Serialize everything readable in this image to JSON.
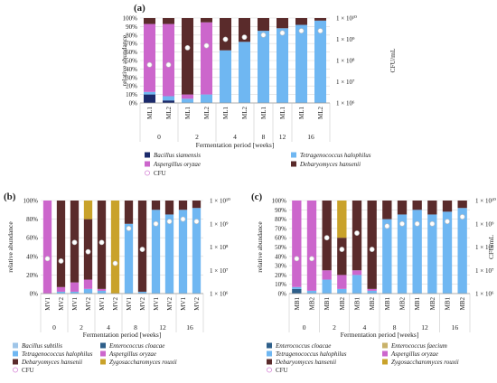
{
  "figure": {
    "colors": {
      "Bacillus siamensis": "#1b2a6b",
      "Bacillus subtilis": "#9fc5e8",
      "Enterococcus cloacae": "#2e5f8a",
      "Enterococcus faecium": "#c9b26a",
      "Tetragenococcus halophilus": "#6fb7f2",
      "Aspergillus oryzae": "#cc66cc",
      "Debaryomyces hansenii": "#5a2b2b",
      "Zygosaccharomyces rouxii": "#c9a22a",
      "CFU": "#ffffff"
    }
  },
  "chart_data": [
    {
      "panel": "(a)",
      "type": "bar",
      "stacked": true,
      "ylabel": "relative abundance",
      "y2label": "CFU/mL",
      "xlabel": "Fermentation period [weeks]",
      "yticks": [
        "0%",
        "10%",
        "20%",
        "30%",
        "40%",
        "50%",
        "60%",
        "70%",
        "80%",
        "90%",
        "100%"
      ],
      "y2ticks": [
        "1 × 10⁶",
        "1 × 10⁷",
        "1 × 10⁸",
        "1 × 10⁹",
        "1 × 10¹⁰"
      ],
      "y2exp": [
        6,
        7,
        8,
        9,
        10
      ],
      "categories": [
        "ML1",
        "ML2",
        "ML1",
        "ML2",
        "ML1",
        "ML2",
        "ML1",
        "ML1",
        "ML1",
        "ML2"
      ],
      "groups": [
        "0",
        "2",
        "4",
        "8",
        "12",
        "16"
      ],
      "group_sizes": [
        2,
        2,
        2,
        1,
        1,
        2
      ],
      "series": [
        {
          "name": "Bacillus siamensis",
          "values": [
            10,
            3,
            0,
            0,
            0,
            0,
            0,
            0,
            0,
            0
          ]
        },
        {
          "name": "Tetragenococcus halophilus",
          "values": [
            3,
            5,
            5,
            10,
            62,
            72,
            85,
            88,
            92,
            97
          ]
        },
        {
          "name": "Aspergillus oryzae",
          "values": [
            80,
            85,
            5,
            85,
            0,
            0,
            0,
            0,
            0,
            0
          ]
        },
        {
          "name": "Debaryomyces hansenii",
          "values": [
            7,
            7,
            90,
            5,
            38,
            28,
            15,
            12,
            8,
            3
          ]
        }
      ],
      "cfu_log10": [
        7.8,
        7.8,
        8.6,
        8.7,
        9.0,
        9.1,
        9.2,
        9.3,
        9.4,
        9.4
      ],
      "legend": [
        "Bacillus siamensis",
        "Tetragenococcus halophilus",
        "Aspergillus oryzae",
        "Debaryomyces hansenii",
        "CFU"
      ]
    },
    {
      "panel": "(b)",
      "type": "bar",
      "stacked": true,
      "ylabel": "relative abundance",
      "xlabel": "Fermentation period [weeks]",
      "yticks": [
        "0%",
        "20%",
        "40%",
        "60%",
        "80%",
        "100%"
      ],
      "y2ticks": [
        "1 × 10⁶",
        "1 × 10⁷",
        "1 × 10⁸",
        "1 × 10⁹",
        "1 × 10¹⁰"
      ],
      "y2exp": [
        6,
        7,
        8,
        9,
        10
      ],
      "categories": [
        "MV1",
        "MV2",
        "MV1",
        "MV2",
        "MV1",
        "MV2",
        "MV1",
        "MV2",
        "MV1",
        "MV2",
        "MV1",
        "MV2"
      ],
      "groups": [
        "0",
        "2",
        "4",
        "8",
        "12",
        "16"
      ],
      "group_sizes": [
        2,
        2,
        2,
        2,
        2,
        2
      ],
      "series": [
        {
          "name": "Bacillus subtilis",
          "values": [
            0,
            0,
            0,
            0,
            0,
            0,
            0,
            0,
            0,
            0,
            0,
            0
          ]
        },
        {
          "name": "Tetragenococcus halophilus",
          "values": [
            0,
            2,
            2,
            5,
            3,
            0,
            75,
            2,
            90,
            85,
            90,
            92
          ]
        },
        {
          "name": "Enterococcus cloacae",
          "values": [
            0,
            0,
            0,
            0,
            0,
            0,
            0,
            0,
            0,
            0,
            0,
            0
          ]
        },
        {
          "name": "Aspergillus oryzae",
          "values": [
            100,
            5,
            10,
            10,
            2,
            0,
            0,
            0,
            0,
            0,
            0,
            0
          ]
        },
        {
          "name": "Debaryomyces hansenii",
          "values": [
            0,
            93,
            88,
            65,
            95,
            0,
            25,
            98,
            10,
            15,
            10,
            8
          ]
        },
        {
          "name": "Zygosaccharomyces rouxii",
          "values": [
            0,
            0,
            0,
            20,
            0,
            100,
            0,
            0,
            0,
            0,
            0,
            0
          ]
        }
      ],
      "cfu_log10": [
        7.5,
        7.4,
        8.2,
        7.8,
        8.2,
        7.3,
        8.8,
        7.9,
        9.0,
        9.1,
        9.2,
        9.1
      ],
      "legend": [
        "Bacillus subtilis",
        "Enterococcus cloacae",
        "Tetragenococcus halophilus",
        "Aspergillus oryzae",
        "Debaryomyces hansenii",
        "Zygosaccharomyces rouxii",
        "CFU"
      ]
    },
    {
      "panel": "(c)",
      "type": "bar",
      "stacked": true,
      "ylabel": "relative abundance",
      "y2label": "CFU/mL",
      "xlabel": "Fermentation period [weeks]",
      "yticks": [
        "0%",
        "10%",
        "20%",
        "30%",
        "40%",
        "50%",
        "60%",
        "70%",
        "80%",
        "90%",
        "100%"
      ],
      "y2ticks": [
        "1 × 10⁶",
        "1 × 10⁷",
        "1 × 10⁸",
        "1 × 10⁹",
        "1 × 10¹⁰"
      ],
      "y2exp": [
        6,
        7,
        8,
        9,
        10
      ],
      "categories": [
        "MB1",
        "MB2",
        "MB1",
        "MB2",
        "MB1",
        "MB2",
        "MB1",
        "MB2",
        "MB1",
        "MB2",
        "MB1",
        "MB2"
      ],
      "groups": [
        "0",
        "2",
        "4",
        "8",
        "12",
        "16"
      ],
      "group_sizes": [
        2,
        2,
        2,
        2,
        2,
        2
      ],
      "series": [
        {
          "name": "Enterococcus cloacae",
          "values": [
            5,
            0,
            0,
            0,
            0,
            0,
            0,
            0,
            0,
            0,
            0,
            0
          ]
        },
        {
          "name": "Tetragenococcus halophilus",
          "values": [
            2,
            3,
            15,
            5,
            20,
            3,
            80,
            85,
            90,
            85,
            88,
            92
          ]
        },
        {
          "name": "Enterococcus faecium",
          "values": [
            0,
            0,
            0,
            0,
            0,
            0,
            0,
            0,
            0,
            0,
            0,
            0
          ]
        },
        {
          "name": "Aspergillus oryzae",
          "values": [
            93,
            97,
            10,
            15,
            5,
            2,
            0,
            0,
            0,
            0,
            0,
            0
          ]
        },
        {
          "name": "Debaryomyces hansenii",
          "values": [
            0,
            0,
            75,
            40,
            75,
            95,
            20,
            15,
            10,
            15,
            12,
            8
          ]
        },
        {
          "name": "Zygosaccharomyces rouxii",
          "values": [
            0,
            0,
            0,
            40,
            0,
            0,
            0,
            0,
            0,
            0,
            0,
            0
          ]
        }
      ],
      "cfu_log10": [
        7.5,
        7.5,
        8.4,
        7.9,
        8.6,
        7.9,
        8.9,
        9.0,
        9.0,
        9.0,
        9.1,
        9.3
      ],
      "legend": [
        "Enterococcus cloacae",
        "Enterococcus faecium",
        "Tetragenococcus halophilus",
        "Aspergillus oryzae",
        "Debaryomyces hansenii",
        "Zygosaccharomyces rouxii",
        "CFU"
      ]
    }
  ]
}
